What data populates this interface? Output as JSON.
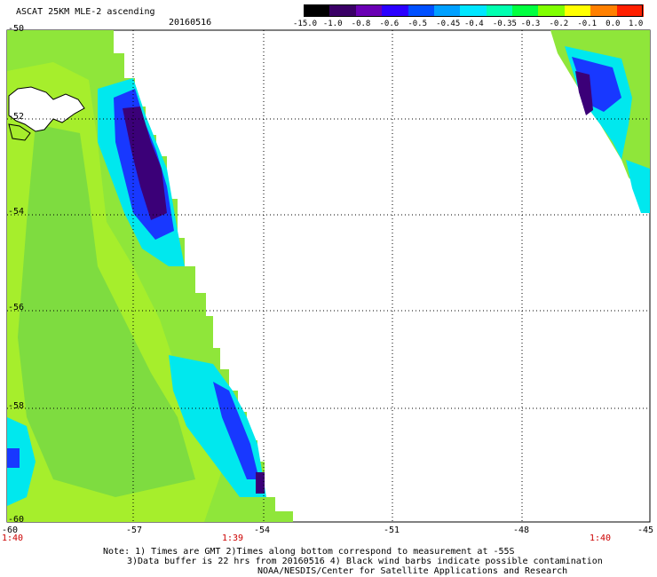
{
  "header": {
    "title": "ASCAT 25KM MLE-2 ascending",
    "date": "20160516"
  },
  "colorbar": {
    "labels": [
      "-15.0",
      "-1.0",
      "-0.8",
      "-0.6",
      "-0.5",
      "-0.45",
      "-0.4",
      "-0.35",
      "-0.3",
      "-0.2",
      "-0.1",
      "0.0",
      "1.0"
    ],
    "colors": [
      "#000000",
      "#3a0066",
      "#6a00b4",
      "#2b00ff",
      "#0050ff",
      "#00a0ff",
      "#00e6ff",
      "#00ffb0",
      "#00ff40",
      "#80ff00",
      "#ffff00",
      "#ff8000",
      "#ff2000"
    ]
  },
  "axes": {
    "lat_labels": [
      "-50",
      "-52",
      "-54",
      "-56",
      "-58",
      "-60"
    ],
    "lon_labels": [
      "-60",
      "-57",
      "-54",
      "-51",
      "-48",
      "-45"
    ]
  },
  "times": [
    "1:40",
    "1:39",
    "1:40"
  ],
  "notes": [
    "Note: 1) Times are GMT 2)Times along bottom correspond to measurement at -55S",
    "3)Data buffer is 22 hrs from 20160516 4) Black wind barbs indicate possible contamination",
    "NOAA/NESDIS/Center for Satellite Applications and Research"
  ]
}
